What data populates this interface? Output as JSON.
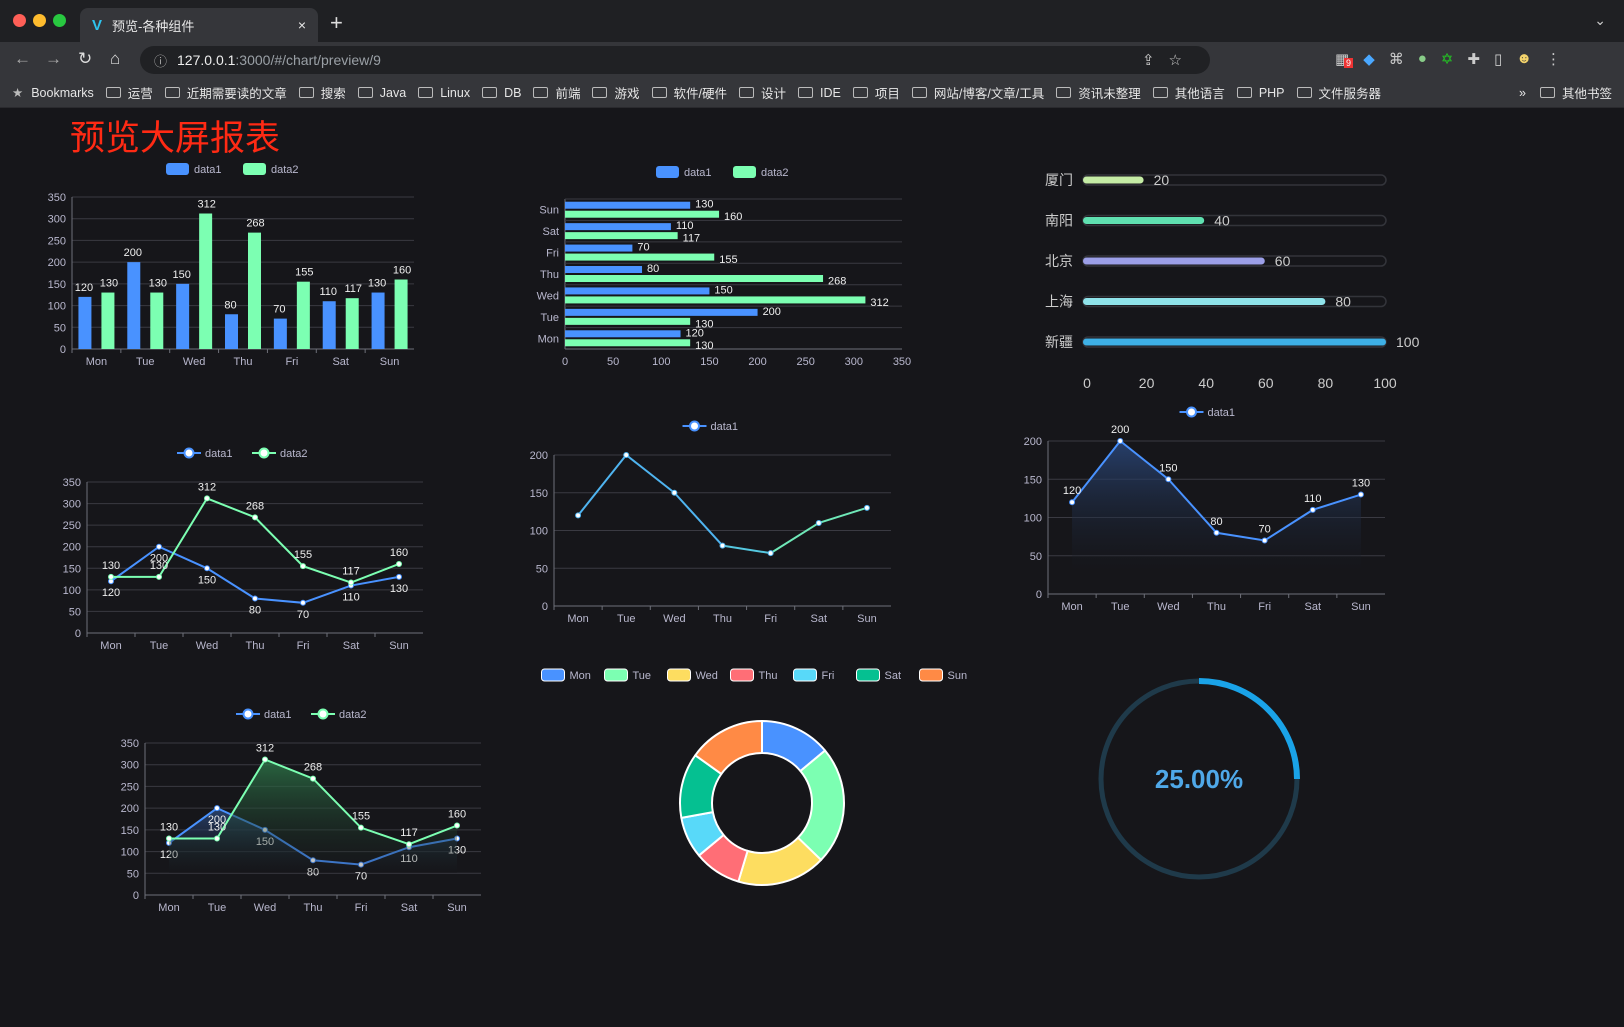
{
  "browser": {
    "tab_title": "预览-各种组件",
    "tab_close": "×",
    "new_tab": "+",
    "tab_menu": "⌄",
    "url_host": "127.0.0.1",
    "url_rest": ":3000/#/chart/preview/9",
    "extension_badge": "9",
    "bookmarks": [
      "Bookmarks",
      "运营",
      "近期需要读的文章",
      "搜索",
      "Java",
      "Linux",
      "DB",
      "前端",
      "游戏",
      "软件/硬件",
      "设计",
      "IDE",
      "项目",
      "网站/博客/文章/工具",
      "资讯未整理",
      "其他语言",
      "PHP",
      "文件服务器"
    ],
    "bookmarks_more": "»",
    "other_bookmarks": "其他书签"
  },
  "page": {
    "title": "预览大屏报表"
  },
  "colors": {
    "data1": "#4992ff",
    "data2": "#7cffb2",
    "title": "#ff2a14",
    "bg": "#16161a"
  },
  "chart_data": [
    {
      "id": "bar",
      "type": "bar",
      "legend": [
        "data1",
        "data2"
      ],
      "categories": [
        "Mon",
        "Tue",
        "Wed",
        "Thu",
        "Fri",
        "Sat",
        "Sun"
      ],
      "series": [
        {
          "name": "data1",
          "values": [
            120,
            200,
            150,
            80,
            70,
            110,
            130
          ]
        },
        {
          "name": "data2",
          "values": [
            130,
            130,
            312,
            268,
            155,
            117,
            160
          ]
        }
      ],
      "ylim": [
        0,
        350
      ],
      "ticks": [
        0,
        50,
        100,
        150,
        200,
        250,
        300,
        350
      ],
      "data_labels": true
    },
    {
      "id": "hbar",
      "type": "bar",
      "orientation": "horizontal",
      "legend": [
        "data1",
        "data2"
      ],
      "categories": [
        "Mon",
        "Tue",
        "Wed",
        "Thu",
        "Fri",
        "Sat",
        "Sun"
      ],
      "series": [
        {
          "name": "data1",
          "values": [
            120,
            200,
            150,
            80,
            70,
            110,
            130
          ]
        },
        {
          "name": "data2",
          "values": [
            130,
            130,
            312,
            268,
            155,
            117,
            160
          ]
        }
      ],
      "xlim": [
        0,
        350
      ],
      "ticks": [
        0,
        50,
        100,
        150,
        200,
        250,
        300,
        350
      ],
      "data_labels": true
    },
    {
      "id": "progress",
      "type": "bar",
      "orientation": "horizontal",
      "categories": [
        "厦门",
        "南阳",
        "北京",
        "上海",
        "新疆"
      ],
      "values": [
        20,
        40,
        60,
        80,
        100
      ],
      "colors": [
        "#c5eca5",
        "#5fe0b0",
        "#9c9fe8",
        "#8fe3ea",
        "#3eb0e6"
      ],
      "xlim": [
        0,
        100
      ],
      "ticks": [
        0,
        20,
        40,
        60,
        80,
        100
      ]
    },
    {
      "id": "line2",
      "type": "line",
      "legend": [
        "data1",
        "data2"
      ],
      "categories": [
        "Mon",
        "Tue",
        "Wed",
        "Thu",
        "Fri",
        "Sat",
        "Sun"
      ],
      "series": [
        {
          "name": "data1",
          "values": [
            120,
            200,
            150,
            80,
            70,
            110,
            130
          ]
        },
        {
          "name": "data2",
          "values": [
            130,
            130,
            312,
            268,
            155,
            117,
            160
          ]
        }
      ],
      "ylim": [
        0,
        350
      ],
      "ticks": [
        0,
        50,
        100,
        150,
        200,
        250,
        300,
        350
      ],
      "data_labels": true
    },
    {
      "id": "line1",
      "type": "line",
      "legend": [
        "data1"
      ],
      "categories": [
        "Mon",
        "Tue",
        "Wed",
        "Thu",
        "Fri",
        "Sat",
        "Sun"
      ],
      "series": [
        {
          "name": "data1",
          "values": [
            120,
            200,
            150,
            80,
            70,
            110,
            130
          ]
        }
      ],
      "ylim": [
        0,
        200
      ],
      "ticks": [
        0,
        50,
        100,
        150,
        200
      ],
      "data_labels": false,
      "visual_colors": [
        "#4992ff",
        "#7cffb2"
      ]
    },
    {
      "id": "area1",
      "type": "area",
      "legend": [
        "data1"
      ],
      "categories": [
        "Mon",
        "Tue",
        "Wed",
        "Thu",
        "Fri",
        "Sat",
        "Sun"
      ],
      "series": [
        {
          "name": "data1",
          "values": [
            120,
            200,
            150,
            80,
            70,
            110,
            130
          ]
        }
      ],
      "ylim": [
        0,
        200
      ],
      "ticks": [
        0,
        50,
        100,
        150,
        200
      ],
      "data_labels": true
    },
    {
      "id": "area2",
      "type": "area",
      "legend": [
        "data1",
        "data2"
      ],
      "categories": [
        "Mon",
        "Tue",
        "Wed",
        "Thu",
        "Fri",
        "Sat",
        "Sun"
      ],
      "series": [
        {
          "name": "data1",
          "values": [
            120,
            200,
            150,
            80,
            70,
            110,
            130
          ]
        },
        {
          "name": "data2",
          "values": [
            130,
            130,
            312,
            268,
            155,
            117,
            160
          ]
        }
      ],
      "ylim": [
        0,
        350
      ],
      "ticks": [
        0,
        50,
        100,
        150,
        200,
        250,
        300,
        350
      ],
      "data_labels": true
    },
    {
      "id": "donut",
      "type": "pie",
      "legend": [
        "Mon",
        "Tue",
        "Wed",
        "Thu",
        "Fri",
        "Sat",
        "Sun"
      ],
      "values": [
        120,
        200,
        150,
        80,
        70,
        110,
        130
      ],
      "colors": [
        "#4992ff",
        "#7cffb2",
        "#fddd60",
        "#ff6e76",
        "#58d9f9",
        "#05c091",
        "#ff8a45"
      ]
    },
    {
      "id": "gauge",
      "type": "gauge",
      "value": 25,
      "label": "25.00%",
      "color": "#1aa3e8"
    }
  ]
}
